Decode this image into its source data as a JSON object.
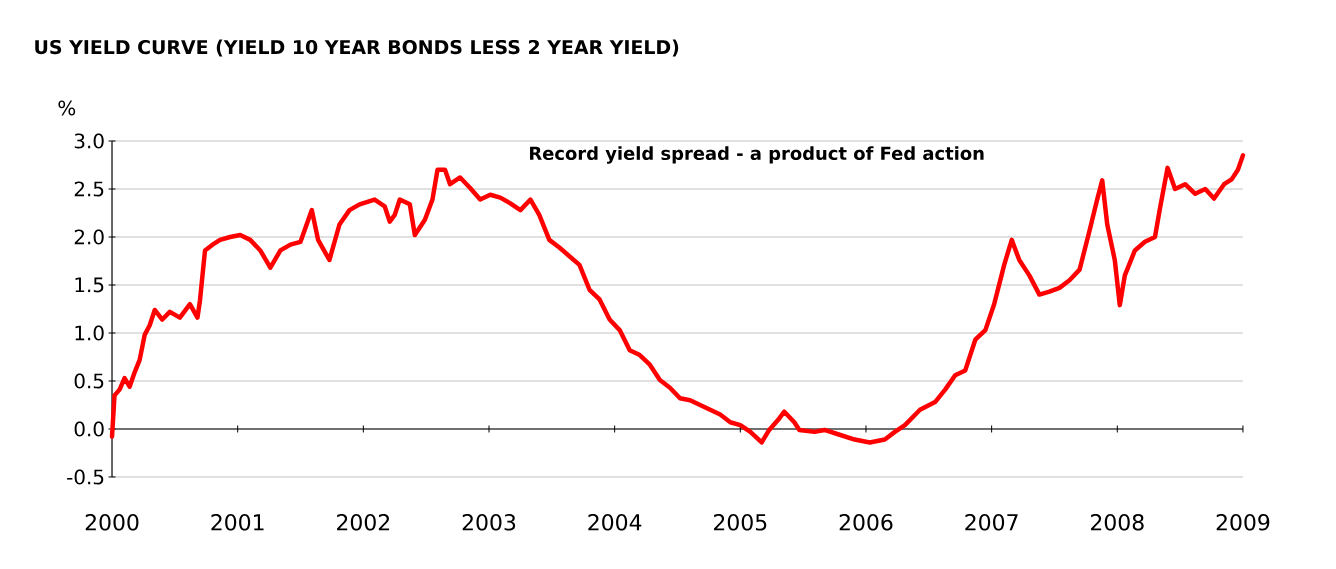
{
  "chart_data": {
    "type": "line",
    "title": "US YIELD CURVE (YIELD 10 YEAR BONDS LESS 2 YEAR YIELD)",
    "ylabel": "%",
    "annotations": [
      "Record yield spread - a product of Fed action"
    ],
    "xlim": [
      2000,
      2009
    ],
    "xticks": [
      2000,
      2001,
      2002,
      2003,
      2004,
      2005,
      2006,
      2007,
      2008,
      2009
    ],
    "ylim": [
      -0.5,
      3.0
    ],
    "yticks": [
      {
        "value": -0.5,
        "label": "-0.5"
      },
      {
        "value": 0,
        "label": "0.0"
      },
      {
        "value": 0.5,
        "label": "0.5"
      },
      {
        "value": 1.0,
        "label": "1.0"
      },
      {
        "value": 1.5,
        "label": "1.5"
      },
      {
        "value": 2.0,
        "label": "2.0"
      },
      {
        "value": 2.5,
        "label": "2.5"
      },
      {
        "value": 3.0,
        "label": "3.0"
      }
    ],
    "grid": "y",
    "marker": "none",
    "line_style": "solid",
    "series": [
      {
        "color": "#ff0000",
        "x": [
          2000.0,
          2000.02,
          2000.06,
          2000.1,
          2000.14,
          2000.18,
          2000.22,
          2000.26,
          2000.3,
          2000.34,
          2000.4,
          2000.46,
          2000.54,
          2000.62,
          2000.68,
          2000.7,
          2000.74,
          2000.8,
          2000.86,
          2000.94,
          2001.02,
          2001.1,
          2001.18,
          2001.26,
          2001.34,
          2001.42,
          2001.5,
          2001.59,
          2001.64,
          2001.73,
          2001.81,
          2001.89,
          2001.97,
          2002.09,
          2002.17,
          2002.21,
          2002.25,
          2002.29,
          2002.37,
          2002.41,
          2002.49,
          2002.55,
          2002.59,
          2002.65,
          2002.69,
          2002.77,
          2002.85,
          2002.93,
          2003.01,
          2003.09,
          2003.17,
          2003.25,
          2003.33,
          2003.4,
          2003.48,
          2003.56,
          2003.64,
          2003.72,
          2003.8,
          2003.88,
          2003.96,
          2004.04,
          2004.12,
          2004.2,
          2004.28,
          2004.36,
          2004.44,
          2004.52,
          2004.6,
          2004.68,
          2004.76,
          2004.84,
          2004.92,
          2005.0,
          2005.08,
          2005.17,
          2005.23,
          2005.31,
          2005.35,
          2005.43,
          2005.47,
          2005.59,
          2005.67,
          2005.79,
          2005.91,
          2006.03,
          2006.15,
          2006.23,
          2006.31,
          2006.43,
          2006.55,
          2006.63,
          2006.71,
          2006.79,
          2006.87,
          2006.95,
          2007.02,
          2007.1,
          2007.16,
          2007.22,
          2007.3,
          2007.38,
          2007.46,
          2007.54,
          2007.62,
          2007.7,
          2007.78,
          2007.84,
          2007.88,
          2007.92,
          2007.98,
          2008.02,
          2008.06,
          2008.14,
          2008.22,
          2008.3,
          2008.34,
          2008.4,
          2008.46,
          2008.54,
          2008.62,
          2008.7,
          2008.77,
          2008.85,
          2008.91,
          2008.96,
          2009.0
        ],
        "values": [
          -0.08,
          0.35,
          0.41,
          0.53,
          0.44,
          0.59,
          0.72,
          0.98,
          1.08,
          1.24,
          1.14,
          1.22,
          1.16,
          1.3,
          1.16,
          1.34,
          1.86,
          1.92,
          1.97,
          2.0,
          2.02,
          1.97,
          1.86,
          1.68,
          1.86,
          1.92,
          1.95,
          2.28,
          1.97,
          1.76,
          2.13,
          2.28,
          2.34,
          2.39,
          2.32,
          2.16,
          2.23,
          2.39,
          2.34,
          2.02,
          2.18,
          2.39,
          2.7,
          2.7,
          2.55,
          2.62,
          2.51,
          2.39,
          2.44,
          2.41,
          2.35,
          2.28,
          2.39,
          2.23,
          1.97,
          1.89,
          1.8,
          1.71,
          1.45,
          1.35,
          1.14,
          1.03,
          0.82,
          0.77,
          0.67,
          0.51,
          0.43,
          0.32,
          0.3,
          0.25,
          0.2,
          0.15,
          0.07,
          0.04,
          -0.03,
          -0.14,
          -0.01,
          0.11,
          0.18,
          0.07,
          -0.01,
          -0.03,
          -0.01,
          -0.06,
          -0.11,
          -0.14,
          -0.11,
          -0.03,
          0.04,
          0.2,
          0.28,
          0.41,
          0.56,
          0.61,
          0.93,
          1.03,
          1.3,
          1.71,
          1.97,
          1.76,
          1.6,
          1.4,
          1.43,
          1.47,
          1.55,
          1.66,
          2.07,
          2.39,
          2.59,
          2.13,
          1.76,
          1.29,
          1.6,
          1.86,
          1.95,
          2.0,
          2.3,
          2.72,
          2.5,
          2.55,
          2.45,
          2.5,
          2.4,
          2.55,
          2.6,
          2.7,
          2.85
        ]
      }
    ]
  }
}
